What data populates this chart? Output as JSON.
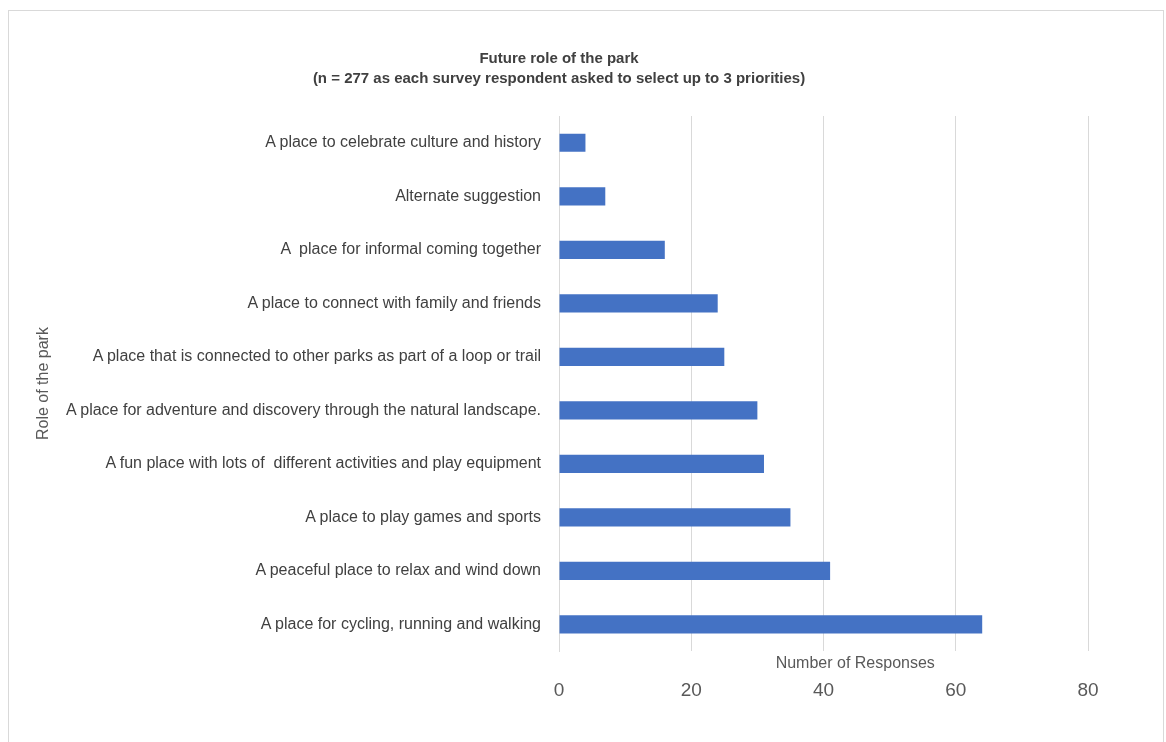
{
  "chart_data": {
    "type": "bar",
    "orientation": "horizontal",
    "title": "Future role of the park",
    "subtitle": "(n = 277 as each survey respondent asked to select up to 3 priorities)",
    "xlabel": "Number of Responses",
    "ylabel": "Role of the park",
    "categories": [
      "A place to celebrate culture and history",
      "Alternate suggestion",
      "A  place for informal coming together",
      "A place to connect with family and friends",
      "A place that is connected to other parks as part of a loop or trail",
      "A place for adventure and discovery through the natural landscape.",
      "A fun place with lots of  different activities and play equipment",
      "A place to play games and sports",
      "A peaceful place to relax and wind down",
      "A place for cycling, running and walking"
    ],
    "values": [
      4,
      7,
      16,
      24,
      25,
      30,
      31,
      35,
      41,
      64
    ],
    "color": "#4472c4",
    "xlim": [
      0,
      80
    ],
    "xticks": [
      0,
      20,
      40,
      60,
      80
    ],
    "grid": "x",
    "legend": false
  }
}
